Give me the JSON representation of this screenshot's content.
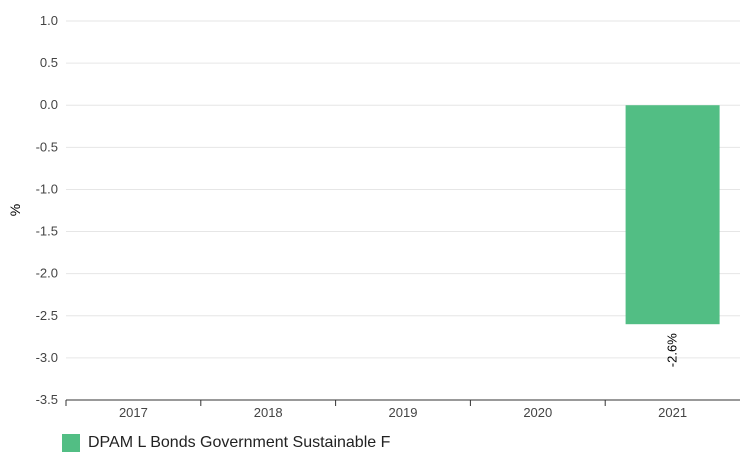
{
  "chart_data": {
    "type": "bar",
    "categories": [
      "2017",
      "2018",
      "2019",
      "2020",
      "2021"
    ],
    "series": [
      {
        "name": "DPAM L Bonds Government Sustainable F",
        "values": [
          null,
          null,
          null,
          null,
          -2.6
        ],
        "data_labels": [
          null,
          null,
          null,
          null,
          "-2.6%"
        ],
        "color": "#52be84"
      }
    ],
    "ylabel": "%",
    "ylim": [
      -3.5,
      1.0
    ],
    "yticks": [
      "1.0",
      "0.5",
      "0.0",
      "-0.5",
      "-1.0",
      "-1.5",
      "-2.0",
      "-2.5",
      "-3.0",
      "-3.5"
    ],
    "grid": true,
    "legend_position": "bottom-left"
  }
}
